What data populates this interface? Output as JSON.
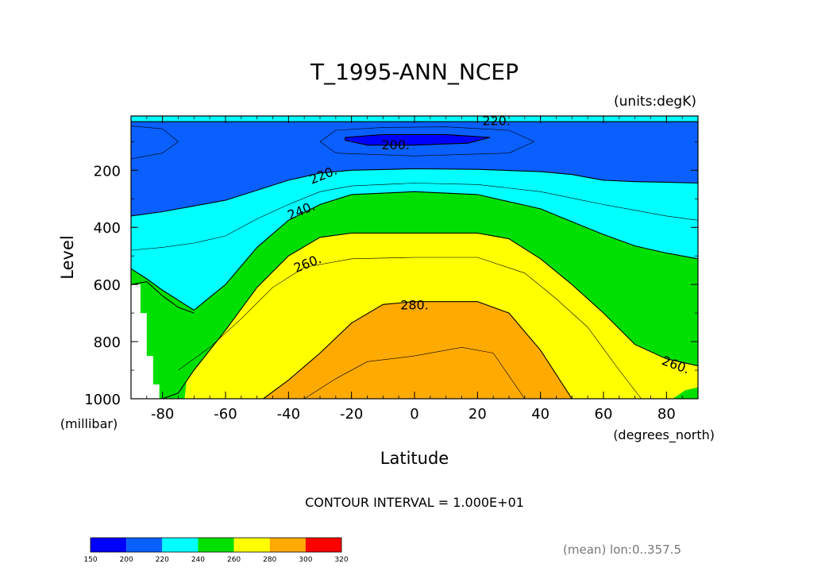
{
  "chart_data": {
    "type": "heatmap",
    "subtype": "filled-contour",
    "title": "T_1995-ANN_NCEP",
    "units_label": "(units:degK)",
    "ylabel": "Level",
    "yunits": "(millibar)",
    "xlabel": "Latitude",
    "xunits": "(degrees_north)",
    "xlim": [
      -90,
      90
    ],
    "ylim": [
      1000,
      10
    ],
    "xticks": [
      "-80",
      "-60",
      "-40",
      "-20",
      "0",
      "20",
      "40",
      "60",
      "80"
    ],
    "xtick_values": [
      -80,
      -60,
      -40,
      -20,
      0,
      20,
      40,
      60,
      80
    ],
    "yticks": [
      "200",
      "400",
      "600",
      "800",
      "1000"
    ],
    "ytick_values": [
      200,
      400,
      600,
      800,
      1000
    ],
    "contour_interval_text": "CONTOUR INTERVAL = 1.000E+01",
    "footnote": "(mean) lon:0..357.5",
    "contour_labels": [
      {
        "text": "220.",
        "lat": 26,
        "lev": 25
      },
      {
        "text": "200.",
        "lat": -6,
        "lev": 110
      },
      {
        "text": "220.",
        "lat": -29,
        "lev": 215
      },
      {
        "text": "240.",
        "lat": -36,
        "lev": 340
      },
      {
        "text": "260.",
        "lat": -34,
        "lev": 525
      },
      {
        "text": "280.",
        "lat": 0,
        "lev": 670
      },
      {
        "text": "260.",
        "lat": 83,
        "lev": 880
      }
    ],
    "isotherm_220": [
      [
        -90,
        360
      ],
      [
        -80,
        345
      ],
      [
        -70,
        325
      ],
      [
        -60,
        305
      ],
      [
        -50,
        270
      ],
      [
        -40,
        235
      ],
      [
        -30,
        210
      ],
      [
        -20,
        200
      ],
      [
        0,
        195
      ],
      [
        20,
        197
      ],
      [
        40,
        205
      ],
      [
        50,
        215
      ],
      [
        60,
        235
      ],
      [
        70,
        240
      ],
      [
        80,
        242
      ],
      [
        90,
        245
      ]
    ],
    "isotherm_240": [
      [
        -90,
        545
      ],
      [
        -85,
        580
      ],
      [
        -80,
        620
      ],
      [
        -70,
        690
      ],
      [
        -60,
        600
      ],
      [
        -50,
        470
      ],
      [
        -40,
        375
      ],
      [
        -30,
        320
      ],
      [
        -20,
        285
      ],
      [
        0,
        275
      ],
      [
        20,
        285
      ],
      [
        40,
        335
      ],
      [
        50,
        380
      ],
      [
        60,
        425
      ],
      [
        70,
        465
      ],
      [
        80,
        490
      ],
      [
        90,
        510
      ]
    ],
    "isotherm_260": [
      [
        -80,
        1000
      ],
      [
        -75,
        980
      ],
      [
        -70,
        900
      ],
      [
        -60,
        760
      ],
      [
        -50,
        610
      ],
      [
        -40,
        500
      ],
      [
        -30,
        435
      ],
      [
        -20,
        420
      ],
      [
        0,
        420
      ],
      [
        20,
        420
      ],
      [
        30,
        440
      ],
      [
        40,
        510
      ],
      [
        50,
        600
      ],
      [
        60,
        700
      ],
      [
        70,
        810
      ],
      [
        80,
        860
      ],
      [
        90,
        885
      ]
    ],
    "isotherm_280": [
      [
        -48,
        1000
      ],
      [
        -40,
        935
      ],
      [
        -30,
        840
      ],
      [
        -20,
        735
      ],
      [
        -10,
        670
      ],
      [
        0,
        660
      ],
      [
        20,
        660
      ],
      [
        30,
        700
      ],
      [
        40,
        830
      ],
      [
        50,
        1000
      ]
    ],
    "isotherm_200": [
      [
        -22,
        85
      ],
      [
        -10,
        75
      ],
      [
        10,
        75
      ],
      [
        24,
        85
      ],
      [
        17,
        105
      ],
      [
        0,
        112
      ],
      [
        -15,
        112
      ],
      [
        -22,
        95
      ]
    ],
    "region_240_250": [
      [
        -90,
        600
      ],
      [
        -85,
        590
      ],
      [
        -80,
        640
      ],
      [
        -75,
        680
      ],
      [
        -70,
        700
      ],
      [
        -73,
        1000
      ],
      [
        -90,
        1000
      ]
    ],
    "region_green_right": [
      [
        82,
        1000
      ],
      [
        86,
        970
      ],
      [
        90,
        960
      ],
      [
        90,
        1000
      ]
    ],
    "colorbar": {
      "levels": [
        150,
        200,
        220,
        240,
        260,
        280,
        300,
        320
      ],
      "colors": [
        "#0000ff",
        "#0a5fff",
        "#00ffff",
        "#00e000",
        "#ffff00",
        "#ffaa00",
        "#ff0000"
      ]
    }
  },
  "colors": {
    "below_200": "#0000ff",
    "band_200_220": "#0a5fff",
    "band_220_240": "#00ffff",
    "band_240_260": "#00e000",
    "band_260_280": "#ffff00",
    "band_280_300": "#ffaa00",
    "above_300": "#ff0000"
  }
}
